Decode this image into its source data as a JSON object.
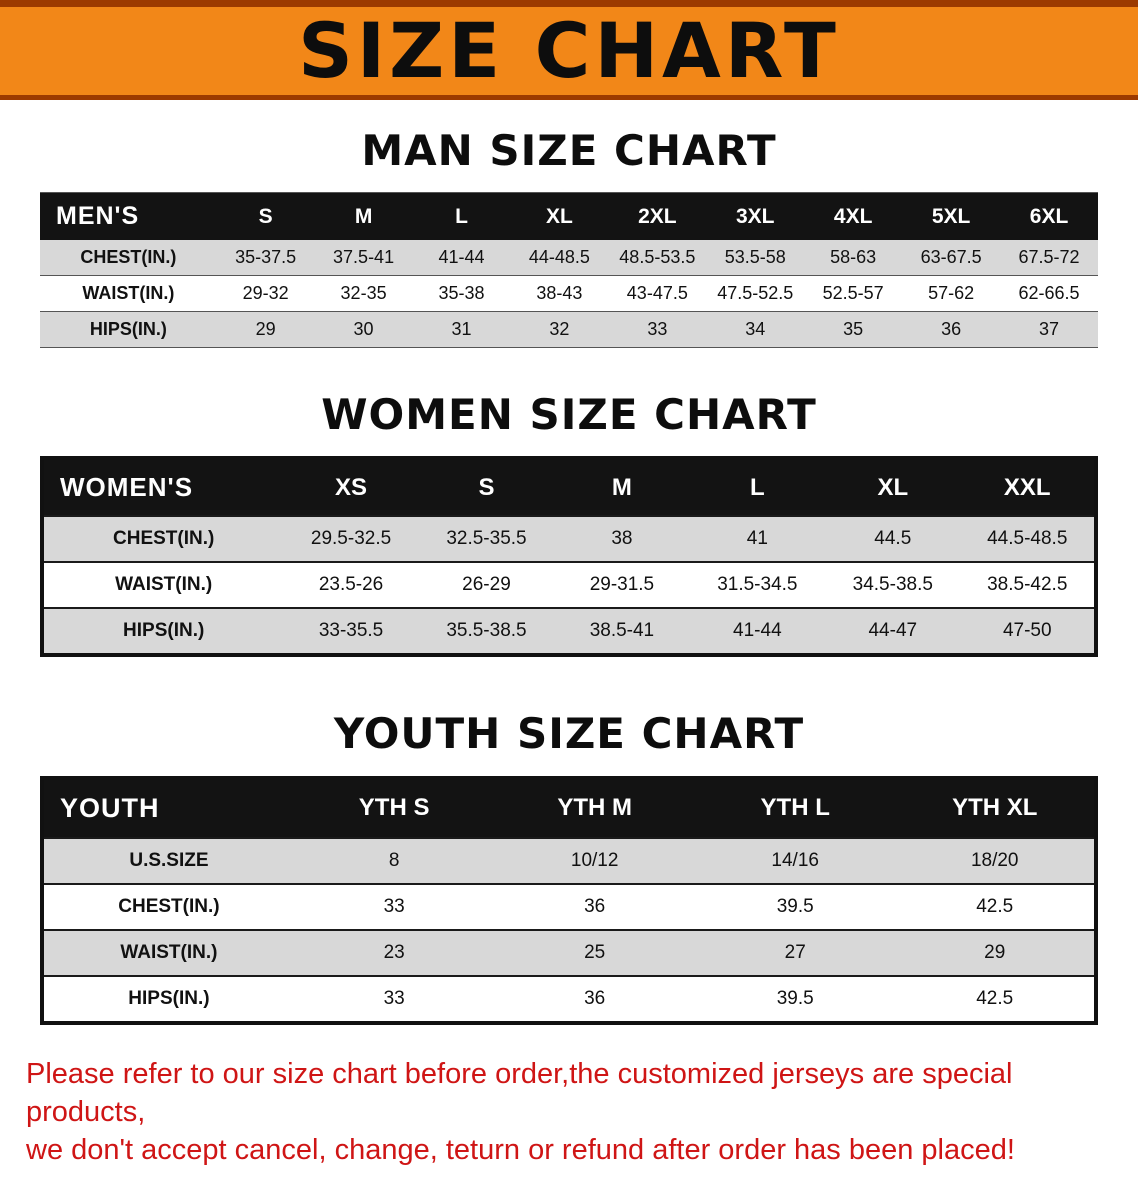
{
  "banner": {
    "title": "SIZE CHART",
    "bg_color": "#f28718",
    "accent_color": "#9c3a00"
  },
  "chart_data": [
    {
      "type": "table",
      "title": "MAN SIZE CHART",
      "columns": [
        "MEN'S",
        "S",
        "M",
        "L",
        "XL",
        "2XL",
        "3XL",
        "4XL",
        "5XL",
        "6XL"
      ],
      "rows": [
        [
          "CHEST(IN.)",
          "35-37.5",
          "37.5-41",
          "41-44",
          "44-48.5",
          "48.5-53.5",
          "53.5-58",
          "58-63",
          "63-67.5",
          "67.5-72"
        ],
        [
          "WAIST(IN.)",
          "29-32",
          "32-35",
          "35-38",
          "38-43",
          "43-47.5",
          "47.5-52.5",
          "52.5-57",
          "57-62",
          "62-66.5"
        ],
        [
          "HIPS(IN.)",
          "29",
          "30",
          "31",
          "32",
          "33",
          "34",
          "35",
          "36",
          "37"
        ]
      ]
    },
    {
      "type": "table",
      "title": "WOMEN SIZE CHART",
      "columns": [
        "WOMEN'S",
        "XS",
        "S",
        "M",
        "L",
        "XL",
        "XXL"
      ],
      "rows": [
        [
          "CHEST(IN.)",
          "29.5-32.5",
          "32.5-35.5",
          "38",
          "41",
          "44.5",
          "44.5-48.5"
        ],
        [
          "WAIST(IN.)",
          "23.5-26",
          "26-29",
          "29-31.5",
          "31.5-34.5",
          "34.5-38.5",
          "38.5-42.5"
        ],
        [
          "HIPS(IN.)",
          "33-35.5",
          "35.5-38.5",
          "38.5-41",
          "41-44",
          "44-47",
          "47-50"
        ]
      ]
    },
    {
      "type": "table",
      "title": "YOUTH SIZE CHART",
      "columns": [
        "YOUTH",
        "YTH S",
        "YTH M",
        "YTH L",
        "YTH XL"
      ],
      "rows": [
        [
          "U.S.SIZE",
          "8",
          "10/12",
          "14/16",
          "18/20"
        ],
        [
          "CHEST(IN.)",
          "33",
          "36",
          "39.5",
          "42.5"
        ],
        [
          "WAIST(IN.)",
          "23",
          "25",
          "27",
          "29"
        ],
        [
          "HIPS(IN.)",
          "33",
          "36",
          "39.5",
          "42.5"
        ]
      ]
    }
  ],
  "disclaimer": {
    "color": "#cf1515",
    "line1": "Please refer to our size chart before order,the customized jerseys are special products,",
    "line2": "we don't accept cancel, change, teturn or refund after order has been placed!"
  }
}
